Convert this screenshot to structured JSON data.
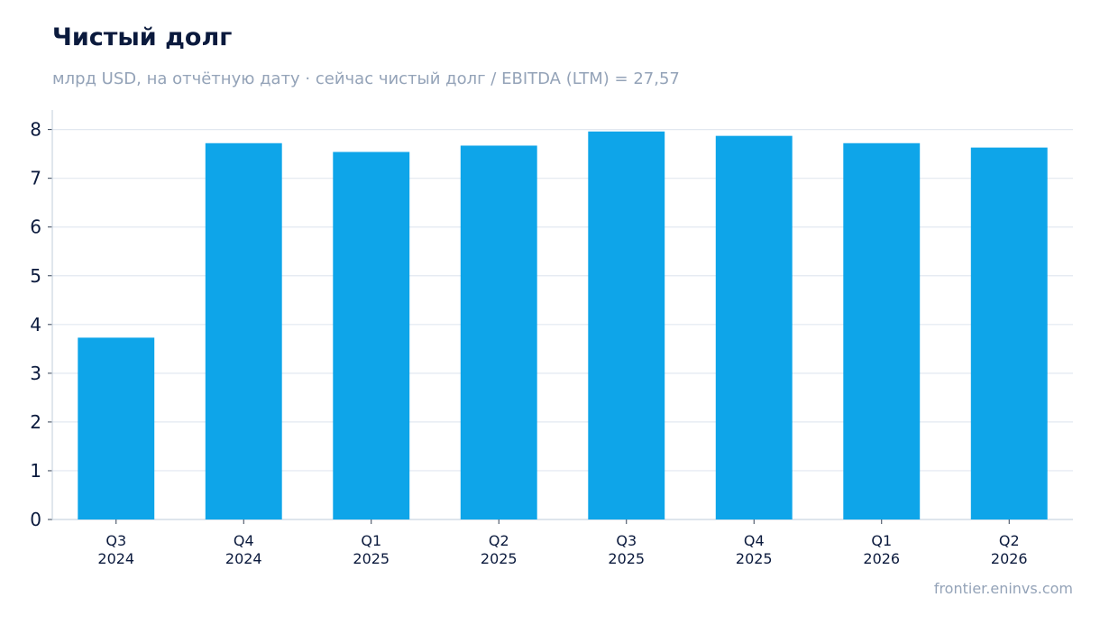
{
  "chart_data": {
    "type": "bar",
    "title": "Чистый долг",
    "subtitle": "млрд USD, на отчётную дату · сейчас чистый долг / EBITDA (LTM) = 27,57",
    "categories": [
      [
        "Q3",
        "2024"
      ],
      [
        "Q4",
        "2024"
      ],
      [
        "Q1",
        "2025"
      ],
      [
        "Q2",
        "2025"
      ],
      [
        "Q3",
        "2025"
      ],
      [
        "Q4",
        "2025"
      ],
      [
        "Q1",
        "2026"
      ],
      [
        "Q2",
        "2026"
      ]
    ],
    "values": [
      3.73,
      7.72,
      7.54,
      7.67,
      7.96,
      7.87,
      7.72,
      7.63
    ],
    "xlabel": "",
    "ylabel": "",
    "ylim": [
      0,
      8.4
    ],
    "yticks": [
      "0",
      "1",
      "2",
      "3",
      "4",
      "5",
      "6",
      "7",
      "8"
    ],
    "grid": true,
    "bar_color": "#0ea5e9"
  },
  "source": "frontier.eninvs.com"
}
